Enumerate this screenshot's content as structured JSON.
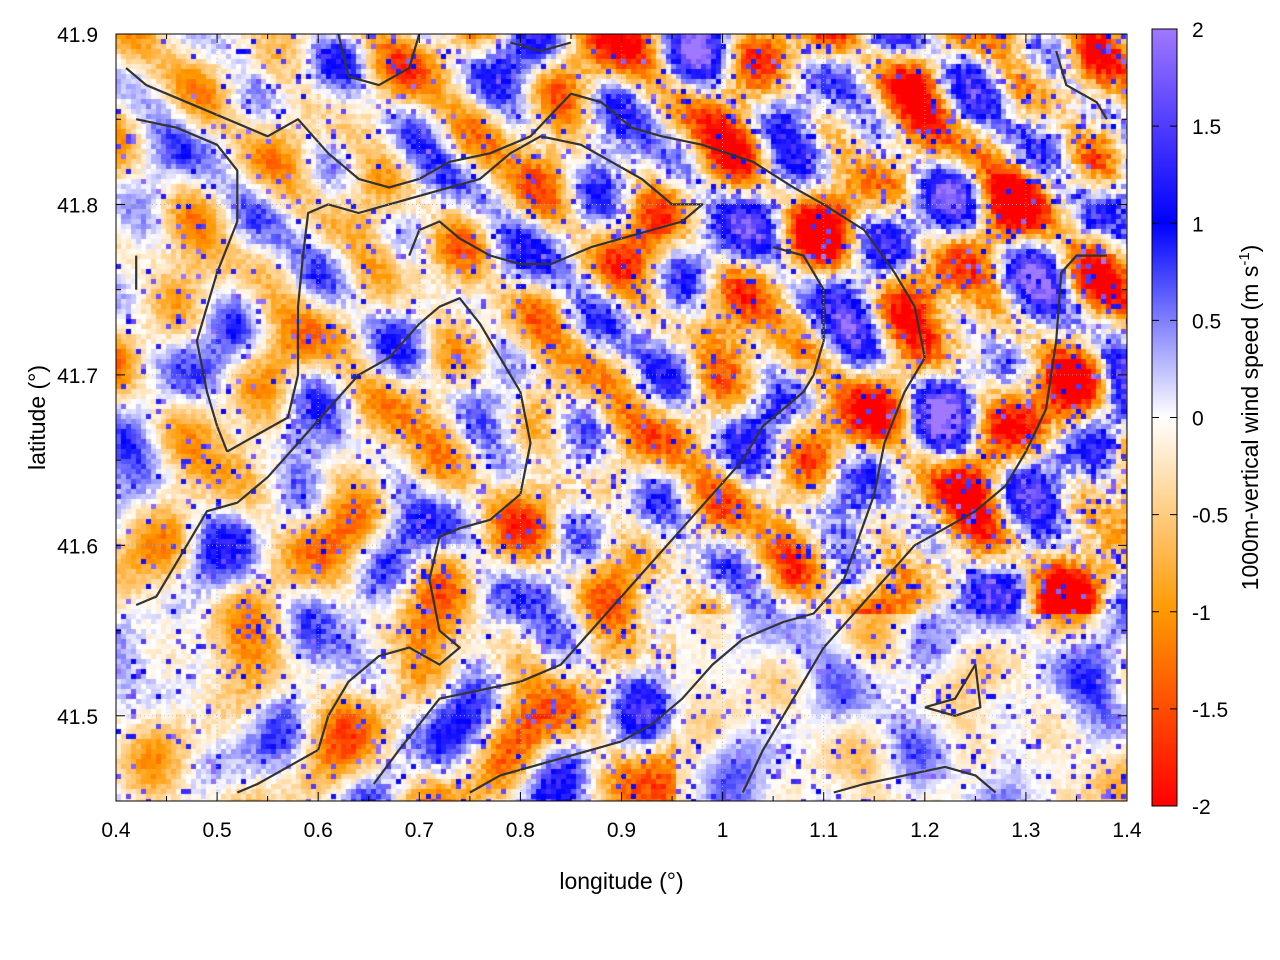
{
  "chart_data": {
    "type": "heatmap",
    "xlabel": "longitude (°)",
    "ylabel": "latitude (°)",
    "colorbar_label": "1000m-vertical wind speed (m s",
    "colorbar_label_sup": "-1",
    "colorbar_label_end": ")",
    "xlim": [
      0.4,
      1.4
    ],
    "ylim": [
      41.45,
      41.9
    ],
    "zlim": [
      -2,
      2
    ],
    "x_ticks": [
      0.4,
      0.5,
      0.6,
      0.7,
      0.8,
      0.9,
      1.0,
      1.1,
      1.2,
      1.3,
      1.4
    ],
    "x_tick_labels": [
      "0.4",
      "0.5",
      "0.6",
      "0.7",
      "0.8",
      "0.9",
      "1",
      "1.1",
      "1.2",
      "1.3",
      "1.4"
    ],
    "y_ticks": [
      41.5,
      41.6,
      41.7,
      41.8,
      41.9
    ],
    "y_tick_labels": [
      "41.5",
      "41.6",
      "41.7",
      "41.8",
      "41.9"
    ],
    "cb_ticks": [
      2,
      1.5,
      1,
      0.5,
      0,
      -0.5,
      -1,
      -1.5,
      -2
    ],
    "cb_tick_labels": [
      "2",
      "1.5",
      "1",
      "0.5",
      "0",
      "-0.5",
      "-1",
      "-1.5",
      "-2"
    ],
    "grid": true,
    "palette": [
      {
        "v": -2.0,
        "c": "#ff0000"
      },
      {
        "v": -1.0,
        "c": "#ff9900"
      },
      {
        "v": 0.0,
        "c": "#ffffff"
      },
      {
        "v": 1.0,
        "c": "#0000ff"
      },
      {
        "v": 2.0,
        "c": "#a078ff"
      }
    ],
    "contour_color": "#333333",
    "contours": [
      [
        [
          0.41,
          41.88
        ],
        [
          0.43,
          41.87
        ],
        [
          0.47,
          41.86
        ],
        [
          0.51,
          41.85
        ],
        [
          0.55,
          41.84
        ],
        [
          0.58,
          41.85
        ],
        [
          0.61,
          41.83
        ],
        [
          0.64,
          41.815
        ],
        [
          0.67,
          41.81
        ],
        [
          0.7,
          41.815
        ],
        [
          0.73,
          41.825
        ],
        [
          0.77,
          41.83
        ],
        [
          0.81,
          41.84
        ],
        [
          0.85,
          41.865
        ],
        [
          0.88,
          41.86
        ],
        [
          0.91,
          41.845
        ],
        [
          0.94,
          41.84
        ],
        [
          0.98,
          41.835
        ],
        [
          1.03,
          41.825
        ],
        [
          1.07,
          41.81
        ],
        [
          1.1,
          41.8
        ],
        [
          1.14,
          41.785
        ],
        [
          1.17,
          41.76
        ],
        [
          1.19,
          41.74
        ],
        [
          1.2,
          41.71
        ],
        [
          1.18,
          41.69
        ],
        [
          1.16,
          41.66
        ],
        [
          1.15,
          41.63
        ],
        [
          1.12,
          41.58
        ],
        [
          1.09,
          41.56
        ],
        [
          1.06,
          41.555
        ],
        [
          1.02,
          41.545
        ],
        [
          0.99,
          41.53
        ],
        [
          0.96,
          41.51
        ],
        [
          0.93,
          41.495
        ],
        [
          0.9,
          41.485
        ],
        [
          0.87,
          41.48
        ],
        [
          0.84,
          41.475
        ],
        [
          0.81,
          41.47
        ],
        [
          0.78,
          41.465
        ],
        [
          0.75,
          41.455
        ]
      ],
      [
        [
          0.42,
          41.85
        ],
        [
          0.46,
          41.845
        ],
        [
          0.5,
          41.835
        ],
        [
          0.52,
          41.82
        ],
        [
          0.52,
          41.79
        ],
        [
          0.5,
          41.76
        ],
        [
          0.49,
          41.74
        ],
        [
          0.48,
          41.72
        ],
        [
          0.49,
          41.69
        ],
        [
          0.5,
          41.67
        ],
        [
          0.51,
          41.655
        ]
      ],
      [
        [
          0.51,
          41.655
        ],
        [
          0.54,
          41.665
        ],
        [
          0.57,
          41.675
        ],
        [
          0.58,
          41.7
        ],
        [
          0.58,
          41.74
        ],
        [
          0.585,
          41.77
        ],
        [
          0.59,
          41.795
        ],
        [
          0.61,
          41.8
        ],
        [
          0.64,
          41.795
        ],
        [
          0.67,
          41.8
        ],
        [
          0.7,
          41.805
        ],
        [
          0.73,
          41.81
        ],
        [
          0.76,
          41.815
        ],
        [
          0.79,
          41.83
        ],
        [
          0.82,
          41.84
        ],
        [
          0.86,
          41.835
        ],
        [
          0.89,
          41.825
        ],
        [
          0.92,
          41.815
        ],
        [
          0.95,
          41.8
        ],
        [
          0.98,
          41.8
        ],
        [
          0.96,
          41.79
        ],
        [
          0.93,
          41.785
        ],
        [
          0.9,
          41.78
        ],
        [
          0.87,
          41.775
        ],
        [
          0.85,
          41.77
        ],
        [
          0.83,
          41.765
        ],
        [
          0.8,
          41.765
        ],
        [
          0.77,
          41.77
        ],
        [
          0.74,
          41.78
        ],
        [
          0.72,
          41.79
        ],
        [
          0.7,
          41.785
        ],
        [
          0.69,
          41.77
        ]
      ],
      [
        [
          0.42,
          41.565
        ],
        [
          0.44,
          41.57
        ],
        [
          0.46,
          41.59
        ],
        [
          0.49,
          41.62
        ],
        [
          0.52,
          41.625
        ],
        [
          0.55,
          41.64
        ],
        [
          0.58,
          41.66
        ],
        [
          0.61,
          41.68
        ],
        [
          0.64,
          41.7
        ],
        [
          0.67,
          41.71
        ],
        [
          0.7,
          41.73
        ],
        [
          0.72,
          41.74
        ],
        [
          0.74,
          41.745
        ],
        [
          0.76,
          41.73
        ],
        [
          0.78,
          41.71
        ],
        [
          0.8,
          41.69
        ],
        [
          0.81,
          41.66
        ],
        [
          0.8,
          41.63
        ],
        [
          0.77,
          41.615
        ],
        [
          0.74,
          41.61
        ],
        [
          0.72,
          41.605
        ],
        [
          0.71,
          41.58
        ],
        [
          0.72,
          41.55
        ],
        [
          0.74,
          41.54
        ],
        [
          0.72,
          41.53
        ],
        [
          0.69,
          41.54
        ],
        [
          0.66,
          41.535
        ],
        [
          0.63,
          41.52
        ],
        [
          0.61,
          41.5
        ],
        [
          0.6,
          41.48
        ],
        [
          0.57,
          41.47
        ],
        [
          0.54,
          41.46
        ],
        [
          0.52,
          41.455
        ]
      ],
      [
        [
          0.655,
          41.46
        ],
        [
          0.68,
          41.48
        ],
        [
          0.7,
          41.495
        ],
        [
          0.72,
          41.51
        ],
        [
          0.76,
          41.515
        ],
        [
          0.8,
          41.52
        ],
        [
          0.84,
          41.53
        ],
        [
          0.87,
          41.55
        ],
        [
          0.9,
          41.57
        ],
        [
          0.93,
          41.59
        ],
        [
          0.96,
          41.61
        ],
        [
          0.99,
          41.63
        ],
        [
          1.02,
          41.65
        ],
        [
          1.04,
          41.67
        ],
        [
          1.06,
          41.68
        ],
        [
          1.08,
          41.69
        ],
        [
          1.09,
          41.7
        ],
        [
          1.1,
          41.72
        ],
        [
          1.1,
          41.75
        ],
        [
          1.08,
          41.77
        ],
        [
          1.05,
          41.775
        ]
      ],
      [
        [
          1.02,
          41.455
        ],
        [
          1.04,
          41.48
        ],
        [
          1.06,
          41.5
        ],
        [
          1.08,
          41.52
        ],
        [
          1.1,
          41.54
        ],
        [
          1.13,
          41.56
        ],
        [
          1.16,
          41.58
        ],
        [
          1.19,
          41.6
        ],
        [
          1.22,
          41.61
        ],
        [
          1.25,
          41.62
        ],
        [
          1.28,
          41.635
        ],
        [
          1.3,
          41.655
        ],
        [
          1.32,
          41.68
        ],
        [
          1.33,
          41.72
        ],
        [
          1.335,
          41.76
        ],
        [
          1.35,
          41.77
        ],
        [
          1.38,
          41.77
        ]
      ],
      [
        [
          1.2,
          41.505
        ],
        [
          1.23,
          41.51
        ],
        [
          1.25,
          41.53
        ],
        [
          1.255,
          41.505
        ],
        [
          1.23,
          41.5
        ],
        [
          1.2,
          41.505
        ]
      ],
      [
        [
          1.11,
          41.455
        ],
        [
          1.14,
          41.46
        ],
        [
          1.18,
          41.465
        ],
        [
          1.22,
          41.47
        ],
        [
          1.25,
          41.465
        ],
        [
          1.27,
          41.455
        ]
      ],
      [
        [
          0.62,
          41.9
        ],
        [
          0.63,
          41.875
        ],
        [
          0.66,
          41.87
        ],
        [
          0.69,
          41.88
        ],
        [
          0.7,
          41.9
        ]
      ],
      [
        [
          0.79,
          41.895
        ],
        [
          0.82,
          41.89
        ],
        [
          0.85,
          41.895
        ]
      ],
      [
        [
          1.33,
          41.89
        ],
        [
          1.34,
          41.87
        ],
        [
          1.37,
          41.86
        ],
        [
          1.38,
          41.85
        ]
      ],
      [
        [
          0.42,
          41.77
        ],
        [
          0.42,
          41.75
        ]
      ]
    ]
  }
}
